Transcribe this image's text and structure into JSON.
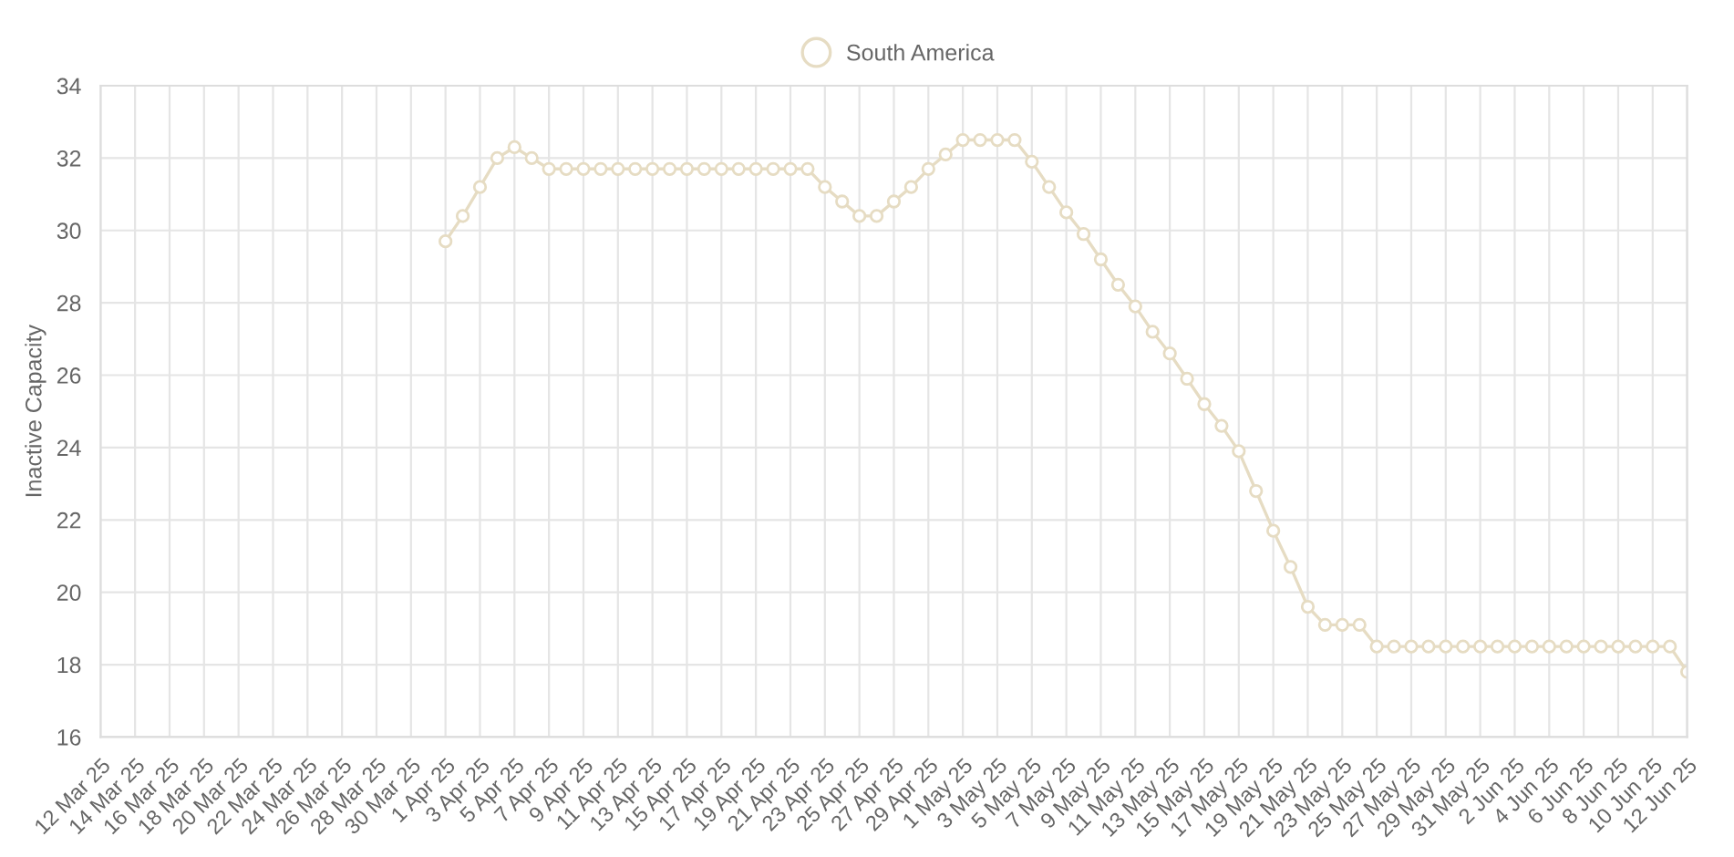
{
  "chart_data": {
    "type": "line",
    "ylabel": "Inactive Capacity",
    "categories": [
      "12 Mar 25",
      null,
      "14 Mar 25",
      null,
      "16 Mar 25",
      null,
      "18 Mar 25",
      null,
      "20 Mar 25",
      null,
      "22 Mar 25",
      null,
      "24 Mar 25",
      null,
      "26 Mar 25",
      null,
      "28 Mar 25",
      null,
      "30 Mar 25",
      null,
      "1 Apr 25",
      null,
      "3 Apr 25",
      null,
      "5 Apr 25",
      null,
      "7 Apr 25",
      null,
      "9 Apr 25",
      null,
      "11 Apr 25",
      null,
      "13 Apr 25",
      null,
      "15 Apr 25",
      null,
      "17 Apr 25",
      null,
      "19 Apr 25",
      null,
      "21 Apr 25",
      null,
      "23 Apr 25",
      null,
      "25 Apr 25",
      null,
      "27 Apr 25",
      null,
      "29 Apr 25",
      null,
      "1 May 25",
      null,
      "3 May 25",
      null,
      "5 May 25",
      null,
      "7 May 25",
      null,
      "9 May 25",
      null,
      "11 May 25",
      null,
      "13 May 25",
      null,
      "15 May 25",
      null,
      "17 May 25",
      null,
      "19 May 25",
      null,
      "21 May 25",
      null,
      "23 May 25",
      null,
      "25 May 25",
      null,
      "27 May 25",
      null,
      "29 May 25",
      null,
      "31 May 25",
      null,
      "2 Jun 25",
      null,
      "4 Jun 25",
      null,
      "6 Jun 25",
      null,
      "8 Jun 25",
      null,
      "10 Jun 25",
      null,
      "12 Jun 25"
    ],
    "series": [
      {
        "name": "South America",
        "color": "#e6dcc3",
        "values": [
          null,
          null,
          null,
          null,
          null,
          null,
          null,
          null,
          null,
          null,
          null,
          null,
          null,
          null,
          null,
          null,
          null,
          null,
          null,
          null,
          29.7,
          30.4,
          31.2,
          32.0,
          32.3,
          32.0,
          31.7,
          31.7,
          31.7,
          31.7,
          31.7,
          31.7,
          31.7,
          31.7,
          31.7,
          31.7,
          31.7,
          31.7,
          31.7,
          31.7,
          31.7,
          31.7,
          31.2,
          30.8,
          30.4,
          30.4,
          30.8,
          31.2,
          31.7,
          32.1,
          32.5,
          32.5,
          32.5,
          32.5,
          31.9,
          31.2,
          30.5,
          29.9,
          29.2,
          28.5,
          27.9,
          27.2,
          26.6,
          25.9,
          25.2,
          24.6,
          23.9,
          22.8,
          21.7,
          20.7,
          19.6,
          19.1,
          19.1,
          19.1,
          18.5,
          18.5,
          18.5,
          18.5,
          18.5,
          18.5,
          18.5,
          18.5,
          18.5,
          18.5,
          18.5,
          18.5,
          18.5,
          18.5,
          18.5,
          18.5,
          18.5,
          18.5,
          17.8
        ]
      }
    ],
    "ylim": [
      16,
      34
    ],
    "yticks": [
      16,
      18,
      20,
      22,
      24,
      26,
      28,
      30,
      32,
      34
    ],
    "grid": true,
    "legend": "top",
    "marker": "circle",
    "line_style": "solid"
  }
}
